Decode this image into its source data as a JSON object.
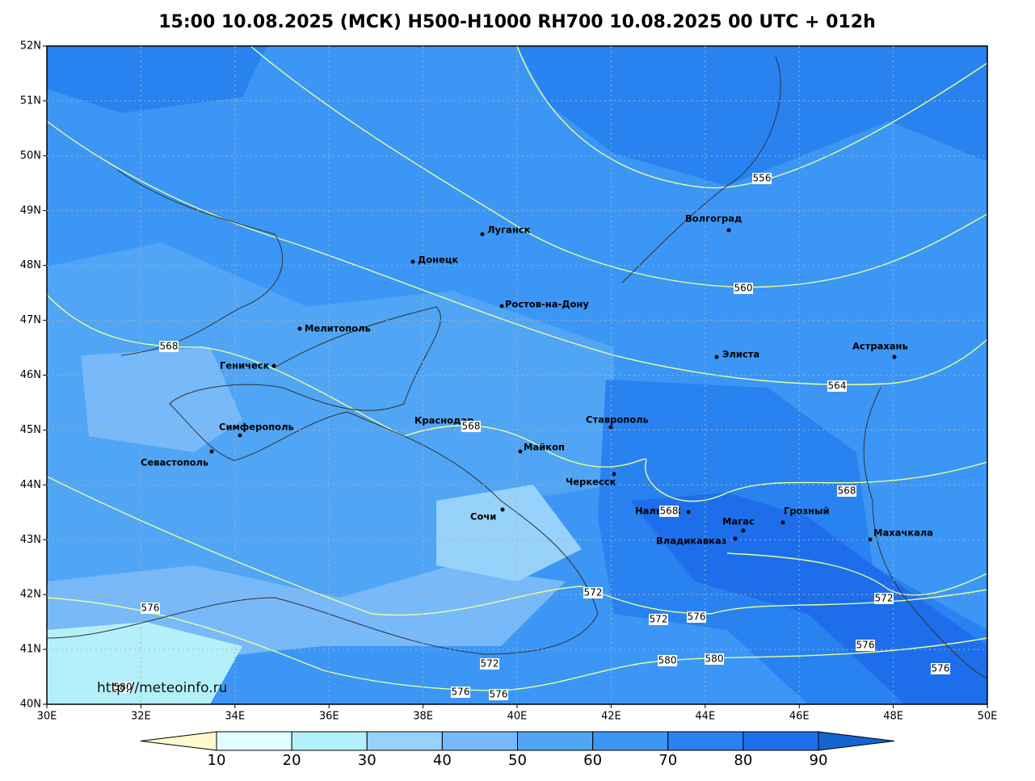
{
  "title": "15:00 10.08.2025 (МСК) H500-H1000 RH700 10.08.2025 00 UTC + 012h",
  "lat_labels": [
    "52N",
    "51N",
    "50N",
    "49N",
    "48N",
    "47N",
    "46N",
    "45N",
    "44N",
    "43N",
    "42N",
    "41N",
    "40N"
  ],
  "lon_labels": [
    "30E",
    "32E",
    "34E",
    "36E",
    "38E",
    "40E",
    "42E",
    "44E",
    "46E",
    "48E",
    "50E"
  ],
  "cities": [
    "Луганск",
    "Донецк",
    "Волгоград",
    "Ростов-на-Дону",
    "Мелитополь",
    "Элиста",
    "Астрахань",
    "Геническ",
    "Симферополь",
    "Севастополь",
    "Краснодар",
    "Ставрополь",
    "Майкоп",
    "Черкесск",
    "Сочи",
    "Нальчик",
    "Магас",
    "Грозный",
    "Владикавказ",
    "Махачкала"
  ],
  "contour_labels": [
    "556",
    "560",
    "564",
    "568",
    "568",
    "568",
    "568",
    "572",
    "572",
    "572",
    "572",
    "576",
    "576",
    "576",
    "576",
    "576",
    "576",
    "580",
    "580",
    "580"
  ],
  "source": "http://meteoinfo.ru",
  "colorbar": {
    "ticks": [
      10,
      20,
      30,
      40,
      50,
      60,
      70,
      80,
      90
    ],
    "colors": [
      "#fffacd",
      "#e0ffff",
      "#b4f0fa",
      "#96d2fa",
      "#78b9fa",
      "#50a5f5",
      "#3c96f5",
      "#2882f0",
      "#1e6eeb",
      "#1464d2"
    ]
  }
}
